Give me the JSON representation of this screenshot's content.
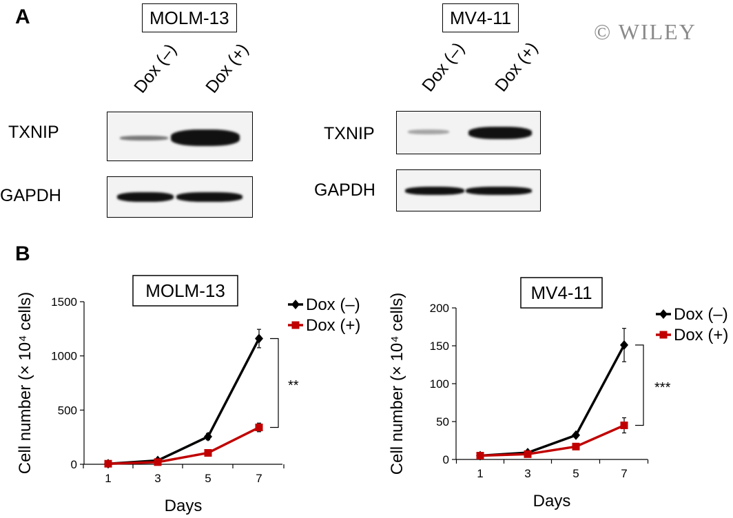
{
  "panel_a": {
    "letter": "A",
    "watermark": "© WILEY",
    "blots": [
      {
        "title": "MOLM-13",
        "lanes": [
          "Dox (–)",
          "Dox (+)"
        ],
        "rows": [
          "TXNIP",
          "GAPDH"
        ]
      },
      {
        "title": "MV4-11",
        "lanes": [
          "Dox (–)",
          "Dox (+)"
        ],
        "rows": [
          "TXNIP",
          "GAPDH"
        ]
      }
    ]
  },
  "panel_b": {
    "letter": "B"
  },
  "chart_data": [
    {
      "type": "line",
      "title": "MOLM-13",
      "xlabel": "Days",
      "ylabel": "Cell number (× 10⁴ cells)",
      "x": [
        1,
        3,
        5,
        7
      ],
      "xticks": [
        "1",
        "3",
        "5",
        "7"
      ],
      "ylim": [
        0,
        1500
      ],
      "yticks": [
        0,
        500,
        1000,
        1500
      ],
      "significance": "**",
      "legend_position": "top-right",
      "series": [
        {
          "name": "Dox (–)",
          "color": "#000000",
          "marker": "diamond",
          "values": [
            5,
            35,
            255,
            1160
          ],
          "errors": [
            3,
            8,
            30,
            85
          ]
        },
        {
          "name": "Dox (+)",
          "color": "#c00000",
          "marker": "square",
          "values": [
            5,
            20,
            105,
            340
          ],
          "errors": [
            3,
            5,
            12,
            40
          ]
        }
      ]
    },
    {
      "type": "line",
      "title": "MV4-11",
      "xlabel": "Days",
      "ylabel": "Cell number (× 10⁴ cells)",
      "x": [
        1,
        3,
        5,
        7
      ],
      "xticks": [
        "1",
        "3",
        "5",
        "7"
      ],
      "ylim": [
        0,
        200
      ],
      "yticks": [
        0,
        50,
        100,
        150,
        200
      ],
      "significance": "***",
      "legend_position": "top-right",
      "series": [
        {
          "name": "Dox (–)",
          "color": "#000000",
          "marker": "diamond",
          "values": [
            5,
            9,
            32,
            151
          ],
          "errors": [
            1,
            1,
            2,
            22
          ]
        },
        {
          "name": "Dox (+)",
          "color": "#c00000",
          "marker": "square",
          "values": [
            5,
            7,
            17,
            45
          ],
          "errors": [
            1,
            1,
            2,
            10
          ]
        }
      ]
    }
  ]
}
